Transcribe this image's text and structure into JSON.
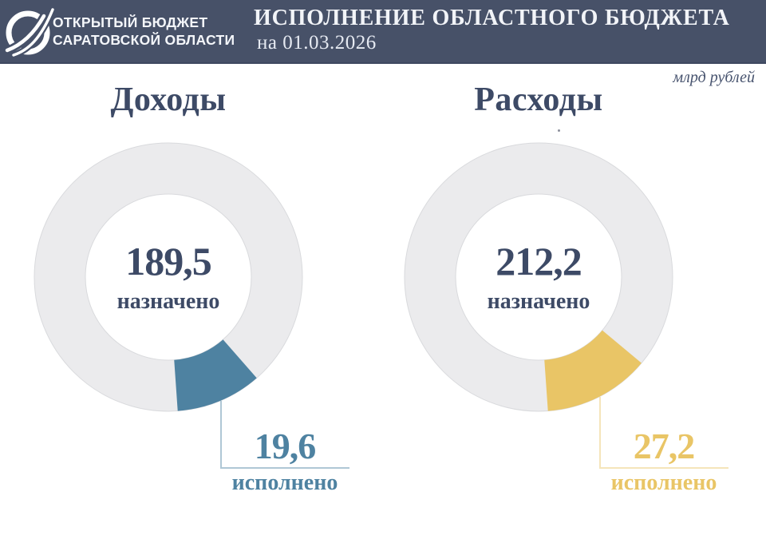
{
  "header": {
    "logo_text_line1": "ОТКРЫТЫЙ БЮДЖЕТ",
    "logo_text_line2": "САРАТОВСКОЙ ОБЛАСТИ",
    "title": "ИСПОЛНЕНИЕ ОБЛАСТНОГО БЮДЖЕТА",
    "date": "на 01.03.2026"
  },
  "units_label": "млрд рублей",
  "colors": {
    "header_bg": "#475168",
    "navy_text": "#3d4a66",
    "ring": "#ebebed",
    "ring_outline": "#d9dadd",
    "revenue_accent": "#4e82a1",
    "expense_accent": "#e9c566"
  },
  "chart_data": [
    {
      "type": "pie",
      "title": "Доходы",
      "assigned_value": 189.5,
      "assigned_display": "189,5",
      "assigned_label": "назначено",
      "executed_value": 19.6,
      "executed_display": "19,6",
      "executed_label": "исполнено",
      "executed_share_pct": 10.3,
      "accent_color": "#4e82a1",
      "units": "млрд рублей",
      "layout": {
        "segment_end_deg_clockwise_from_top": 176,
        "legend": "none",
        "donut": true
      }
    },
    {
      "type": "pie",
      "title": "Расходы",
      "assigned_value": 212.2,
      "assigned_display": "212,2",
      "assigned_label": "назначено",
      "executed_value": 27.2,
      "executed_display": "27,2",
      "executed_label": "исполнено",
      "executed_share_pct": 12.8,
      "accent_color": "#e9c566",
      "units": "млрд рублей",
      "layout": {
        "segment_end_deg_clockwise_from_top": 176,
        "legend": "none",
        "donut": true
      }
    }
  ]
}
